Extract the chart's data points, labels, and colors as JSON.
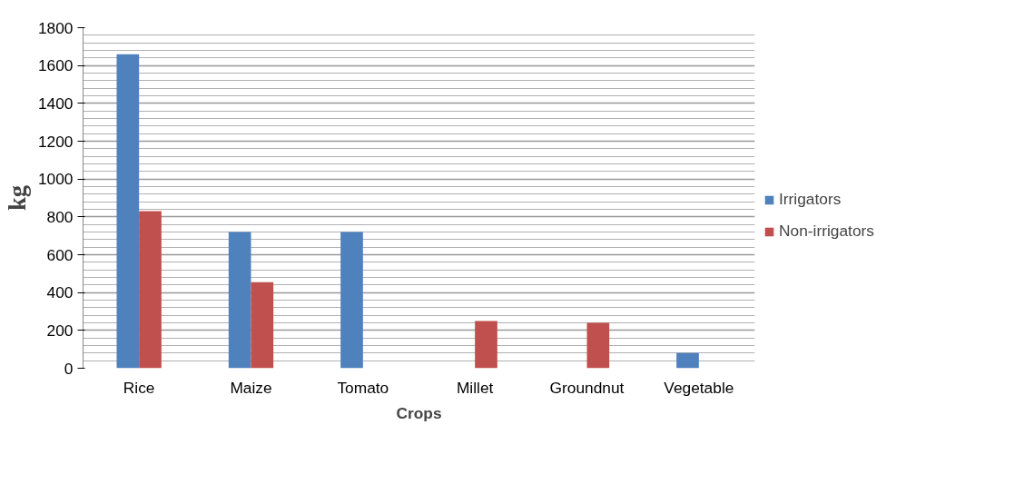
{
  "chart_data": {
    "type": "bar",
    "xlabel": "Crops",
    "ylabel": "kg",
    "categories": [
      "Rice",
      "Maize",
      "Tomato",
      "Millet",
      "Groundnut",
      "Vegetable"
    ],
    "series": [
      {
        "name": "Irrigators",
        "color": "#4f81bd",
        "values": [
          1660,
          720,
          720,
          null,
          null,
          80
        ]
      },
      {
        "name": "Non-irrigators",
        "color": "#c0504d",
        "values": [
          830,
          455,
          null,
          250,
          240,
          null
        ]
      }
    ],
    "ylim": [
      0,
      1800
    ],
    "yticks": [
      0,
      200,
      400,
      600,
      800,
      1000,
      1200,
      1400,
      1600,
      1800
    ],
    "grid": "y",
    "legend": "right"
  }
}
